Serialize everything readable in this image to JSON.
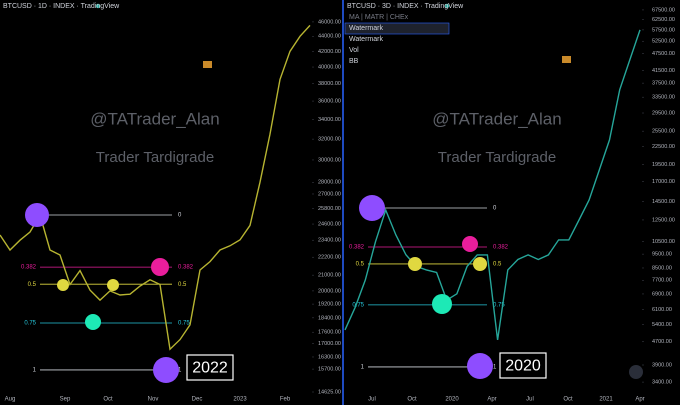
{
  "chart_data": [
    {
      "type": "line",
      "title": "BTCUSD · 1D · INDEX · TradingView",
      "color": "#b7b431",
      "yscale": "log",
      "ylim": [
        14625,
        49230
      ],
      "yticks": [
        {
          "value": 46000,
          "label": "46000.00"
        },
        {
          "value": 44000,
          "label": "44000.00"
        },
        {
          "value": 42000,
          "label": "42000.00"
        },
        {
          "value": 40000,
          "label": "40000.00"
        },
        {
          "value": 38000,
          "label": "38000.00"
        },
        {
          "value": 36000,
          "label": "36000.00"
        },
        {
          "value": 34000,
          "label": "34000.00"
        },
        {
          "value": 32000,
          "label": "32000.00"
        },
        {
          "value": 30000,
          "label": "30000.00"
        },
        {
          "value": 28000,
          "label": "28000.00"
        },
        {
          "value": 27000,
          "label": "27000.00"
        },
        {
          "value": 25800,
          "label": "25800.00"
        },
        {
          "value": 24600,
          "label": "24600.00"
        },
        {
          "value": 23400,
          "label": "23400.00"
        },
        {
          "value": 22200,
          "label": "22200.00"
        },
        {
          "value": 21000,
          "label": "21000.00"
        },
        {
          "value": 20000,
          "label": "20000.00"
        },
        {
          "value": 19200,
          "label": "19200.00"
        },
        {
          "value": 18400,
          "label": "18400.00"
        },
        {
          "value": 17600,
          "label": "17600.00"
        },
        {
          "value": 17000,
          "label": "17000.00"
        },
        {
          "value": 16300,
          "label": "16300.00"
        },
        {
          "value": 15700,
          "label": "15700.00"
        },
        {
          "value": 14625,
          "label": "14625.00"
        }
      ],
      "xlabels": [
        "Aug",
        "Sep",
        "Oct",
        "Nov",
        "Dec",
        "2023",
        "Feb"
      ],
      "values": [
        23780,
        22700,
        23400,
        24000,
        25300,
        22700,
        22350,
        20400,
        21300,
        20050,
        19440,
        20000,
        19750,
        19800,
        20300,
        20700,
        20400,
        16700,
        17200,
        18000,
        21340,
        21900,
        22700,
        23000,
        23420,
        24500,
        28000,
        32500,
        38500,
        42000,
        44000,
        45500
      ],
      "levels": [
        0,
        0.382,
        0.5,
        0.75,
        1
      ],
      "level_prices": [
        25300,
        21530,
        20420,
        18110,
        15660
      ],
      "level_colors": [
        "#d1d4dc",
        "#e91e9c",
        "#e0d840",
        "#26c6da",
        "#d1d4dc"
      ],
      "watermarks": [
        "@TATrader_Alan",
        "Trader Tardigrade"
      ],
      "year": "2022"
    },
    {
      "type": "line",
      "title": "BTCUSD · 3D · INDEX · TradingView",
      "color": "#26a69a",
      "yscale": "log",
      "ylim": [
        3140,
        73100
      ],
      "yticks": [
        {
          "value": 67500,
          "label": "67500.00"
        },
        {
          "value": 62500,
          "label": "62500.00"
        },
        {
          "value": 57500,
          "label": "57500.00"
        },
        {
          "value": 52500,
          "label": "52500.00"
        },
        {
          "value": 47500,
          "label": "47500.00"
        },
        {
          "value": 41500,
          "label": "41500.00"
        },
        {
          "value": 37500,
          "label": "37500.00"
        },
        {
          "value": 33500,
          "label": "33500.00"
        },
        {
          "value": 29500,
          "label": "29500.00"
        },
        {
          "value": 25500,
          "label": "25500.00"
        },
        {
          "value": 22500,
          "label": "22500.00"
        },
        {
          "value": 19500,
          "label": "19500.00"
        },
        {
          "value": 17000,
          "label": "17000.00"
        },
        {
          "value": 14500,
          "label": "14500.00"
        },
        {
          "value": 12500,
          "label": "12500.00"
        },
        {
          "value": 10500,
          "label": "10500.00"
        },
        {
          "value": 9500,
          "label": "9500.00"
        },
        {
          "value": 8500,
          "label": "8500.00"
        },
        {
          "value": 7700,
          "label": "7700.00"
        },
        {
          "value": 6900,
          "label": "6900.00"
        },
        {
          "value": 6100,
          "label": "6100.00"
        },
        {
          "value": 5400,
          "label": "5400.00"
        },
        {
          "value": 4700,
          "label": "4700.00"
        },
        {
          "value": 3900,
          "label": "3900.00"
        },
        {
          "value": 3400,
          "label": "3400.00"
        }
      ],
      "xlabels": [
        "Jul",
        "Oct",
        "2020",
        "Apr",
        "Jul",
        "Oct",
        "2021",
        "Apr"
      ],
      "values": [
        5170,
        6200,
        7720,
        10500,
        13540,
        11080,
        9440,
        8610,
        8370,
        8200,
        6570,
        6910,
        8610,
        9440,
        9440,
        4770,
        8370,
        9100,
        9440,
        9100,
        9440,
        10650,
        10650,
        12490,
        14670,
        18670,
        23770,
        35530,
        45200,
        57500
      ],
      "levels": [
        0,
        0.382,
        0.5,
        0.75,
        1
      ],
      "level_prices": [
        13760,
        10060,
        8780,
        6320,
        3840
      ],
      "level_colors": [
        "#d1d4dc",
        "#e91e9c",
        "#e0d840",
        "#26c6da",
        "#d1d4dc"
      ],
      "watermarks": [
        "@TATrader_Alan",
        "Trader Tardigrade"
      ],
      "year": "2020",
      "legend": [
        "MA | MATR | CHEx",
        "Watermark",
        "Watermark",
        "Vol",
        "BB"
      ]
    }
  ]
}
